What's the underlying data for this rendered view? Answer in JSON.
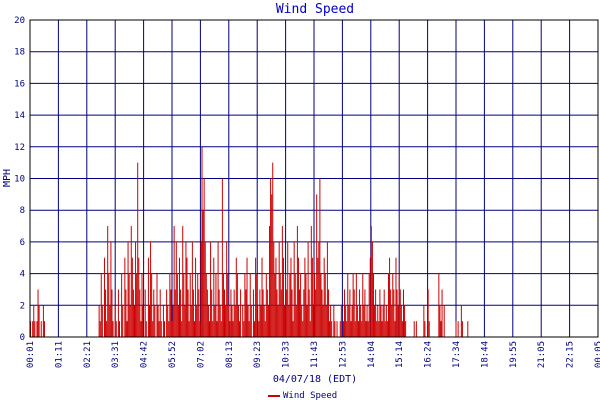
{
  "chart_data": {
    "type": "bar",
    "title": "Wind Speed",
    "xlabel": "04/07/18 (EDT)",
    "ylabel": "MPH",
    "ylim": [
      0,
      20
    ],
    "yticks": [
      0,
      2,
      4,
      6,
      8,
      10,
      12,
      14,
      16,
      18,
      20
    ],
    "xticks": [
      "00:01",
      "01:11",
      "02:21",
      "03:31",
      "04:42",
      "05:52",
      "07:02",
      "08:13",
      "09:23",
      "10:33",
      "11:43",
      "12:53",
      "14:04",
      "15:14",
      "16:24",
      "17:34",
      "18:44",
      "19:55",
      "21:05",
      "22:15",
      "00:05"
    ],
    "grid": true,
    "legend_position": "bottom",
    "colors": {
      "series": "#cc0000",
      "grid": "#000080",
      "axis_text": "#000080",
      "title": "#0000cc"
    },
    "series": [
      {
        "name": "Wind Speed",
        "values": [
          1,
          0,
          1,
          2,
          1,
          0,
          1,
          3,
          2,
          0,
          1,
          0,
          2,
          1,
          0,
          0,
          0,
          0,
          0,
          0,
          0,
          0,
          0,
          0,
          0,
          0,
          0,
          0,
          0,
          0,
          0,
          0,
          0,
          0,
          0,
          0,
          0,
          0,
          0,
          0,
          0,
          0,
          0,
          0,
          0,
          0,
          0,
          0,
          0,
          0,
          0,
          0,
          0,
          0,
          0,
          0,
          0,
          0,
          0,
          0,
          0,
          0,
          0,
          0,
          2,
          1,
          4,
          2,
          0,
          5,
          3,
          1,
          7,
          4,
          2,
          6,
          3,
          1,
          0,
          2,
          1,
          0,
          3,
          1,
          0,
          4,
          2,
          0,
          5,
          3,
          1,
          6,
          4,
          2,
          7,
          5,
          3,
          2,
          6,
          4,
          11,
          5,
          3,
          1,
          4,
          2,
          0,
          3,
          1,
          0,
          5,
          2,
          6,
          4,
          1,
          3,
          2,
          0,
          4,
          2,
          1,
          3,
          1,
          0,
          2,
          1,
          0,
          3,
          2,
          1,
          4,
          3,
          1,
          2,
          7,
          3,
          6,
          4,
          2,
          5,
          3,
          1,
          7,
          4,
          2,
          6,
          5,
          3,
          1,
          4,
          2,
          6,
          3,
          1,
          5,
          2,
          4,
          3,
          1,
          6,
          12,
          8,
          10,
          6,
          4,
          3,
          2,
          1,
          6,
          3,
          1,
          5,
          2,
          4,
          1,
          6,
          3,
          2,
          1,
          10,
          4,
          3,
          2,
          6,
          4,
          2,
          1,
          3,
          2,
          1,
          3,
          2,
          5,
          4,
          2,
          1,
          3,
          0,
          2,
          1,
          4,
          3,
          5,
          2,
          1,
          4,
          2,
          0,
          3,
          1,
          5,
          4,
          2,
          1,
          3,
          2,
          5,
          3,
          2,
          1,
          4,
          3,
          2,
          7,
          10,
          9,
          11,
          6,
          4,
          5,
          3,
          2,
          6,
          4,
          3,
          7,
          5,
          2,
          4,
          3,
          6,
          2,
          4,
          5,
          3,
          1,
          6,
          4,
          2,
          7,
          5,
          3,
          4,
          2,
          1,
          3,
          5,
          4,
          2,
          6,
          3,
          1,
          7,
          5,
          2,
          4,
          3,
          9,
          5,
          6,
          10,
          4,
          3,
          2,
          5,
          4,
          2,
          6,
          3,
          1,
          2,
          1,
          0,
          2,
          1,
          0,
          1,
          0,
          0,
          1,
          2,
          0,
          1,
          3,
          2,
          1,
          4,
          2,
          3,
          1,
          2,
          4,
          3,
          1,
          4,
          2,
          1,
          3,
          2,
          1,
          4,
          2,
          3,
          1,
          2,
          1,
          4,
          5,
          7,
          6,
          4,
          2,
          3,
          1,
          2,
          1,
          3,
          2,
          1,
          2,
          3,
          1,
          2,
          1,
          4,
          5,
          3,
          2,
          4,
          3,
          1,
          5,
          3,
          2,
          4,
          3,
          2,
          1,
          3,
          2,
          1,
          0,
          0,
          0,
          0,
          0,
          0,
          0,
          1,
          0,
          1,
          0,
          0,
          0,
          0,
          0,
          0,
          2,
          1,
          0,
          0,
          3,
          1,
          0,
          0,
          0,
          0,
          0,
          0,
          0,
          0,
          4,
          2,
          1,
          3,
          0,
          2,
          0,
          0,
          0,
          0,
          0,
          0,
          0,
          0,
          0,
          0,
          1,
          0,
          1,
          0,
          0,
          2,
          1,
          0,
          0,
          0,
          0,
          1,
          0,
          0,
          0,
          0,
          0,
          0,
          0,
          0,
          0,
          0,
          0,
          0,
          0,
          0,
          0,
          0,
          0,
          0,
          0,
          0,
          0,
          0,
          0,
          0,
          0,
          0,
          0,
          0,
          0,
          0,
          0,
          0,
          0,
          0,
          0,
          0,
          0,
          0,
          0,
          0,
          0,
          0,
          0,
          0,
          0,
          0,
          0,
          0,
          0,
          0,
          0,
          0,
          0,
          0,
          0,
          0,
          0,
          0,
          0,
          0,
          0,
          0,
          0,
          0,
          0,
          0,
          0,
          0,
          0,
          0,
          0,
          0,
          0,
          0,
          0,
          0,
          0,
          0,
          0,
          0,
          0,
          0,
          0,
          0,
          0,
          0,
          0,
          0,
          0,
          0,
          0,
          0,
          0,
          0,
          0,
          0,
          0,
          0,
          0,
          0,
          0,
          0,
          0,
          0,
          0,
          0,
          0,
          0,
          0,
          0,
          0,
          0,
          0,
          0,
          0,
          0,
          0,
          0,
          0,
          0,
          0
        ]
      }
    ]
  }
}
